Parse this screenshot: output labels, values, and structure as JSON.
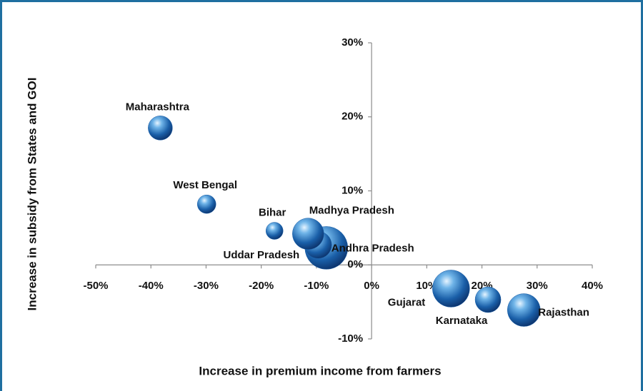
{
  "chart_data": {
    "type": "bubble",
    "xlabel": "Increase in premium income from farmers",
    "ylabel": "Increase in subsidy from States and GOI",
    "labels": [
      "Maharashtra",
      "West Bengal",
      "Bihar",
      "Andhra Pradesh",
      "Uddar Pradesh",
      "Madhya Pradesh",
      "Gujarat",
      "Karnataka",
      "Rajasthan"
    ],
    "x": [
      -38.3,
      -29.9,
      -17.6,
      -8.2,
      -9.7,
      -11.5,
      14.4,
      21.1,
      27.6
    ],
    "values": [
      18.5,
      8.2,
      4.6,
      2.3,
      2.7,
      4.2,
      -3.2,
      -4.7,
      -6.1
    ],
    "sizes": [
      17,
      13,
      12,
      30,
      19,
      22,
      26,
      18,
      23
    ],
    "color": "#1a5fa8",
    "xlim": [
      -50,
      40
    ],
    "xticks": [
      {
        "value": -50,
        "label": "-50%"
      },
      {
        "value": -40,
        "label": "-40%"
      },
      {
        "value": -30,
        "label": "-30%"
      },
      {
        "value": -20,
        "label": "-20%"
      },
      {
        "value": -10,
        "label": "-10%"
      },
      {
        "value": 0,
        "label": "0%"
      },
      {
        "value": 10,
        "label": "10%"
      },
      {
        "value": 20,
        "label": "20%"
      },
      {
        "value": 30,
        "label": "30%"
      },
      {
        "value": 40,
        "label": "40%"
      }
    ],
    "ylim": [
      -10,
      30
    ],
    "yticks": [
      {
        "value": -10,
        "label": "-10%"
      },
      {
        "value": 0,
        "label": "0%"
      },
      {
        "value": 10,
        "label": "10%"
      },
      {
        "value": 20,
        "label": "20%"
      },
      {
        "value": 30,
        "label": "30%"
      }
    ],
    "grid": false
  }
}
